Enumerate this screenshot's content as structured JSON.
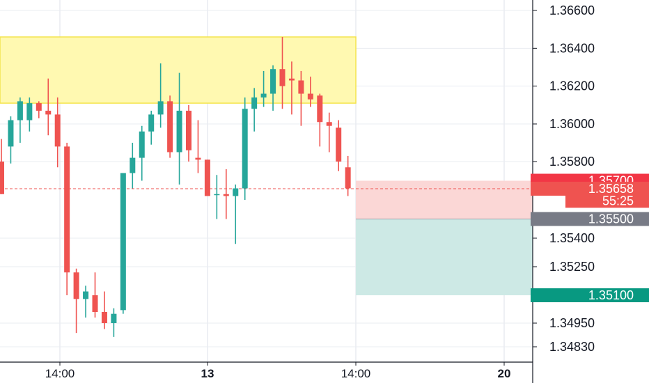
{
  "chart_data": {
    "type": "candlestick",
    "ylim": [
      1.3478,
      1.3668
    ],
    "y_ticks": [
      "1.36600",
      "1.36400",
      "1.36200",
      "1.36000",
      "1.35800",
      "1.35400",
      "1.35250",
      "1.34950",
      "1.34830"
    ],
    "x_ticks": [
      {
        "label": "14:00",
        "bold": false
      },
      {
        "label": "13",
        "bold": true
      },
      {
        "label": "14:00",
        "bold": false
      },
      {
        "label": "20",
        "bold": true
      }
    ],
    "candles": [
      {
        "o": 1.358,
        "h": 1.3592,
        "l": 1.3563,
        "c": 1.3563
      },
      {
        "o": 1.3588,
        "h": 1.3604,
        "l": 1.3579,
        "c": 1.3602
      },
      {
        "o": 1.3602,
        "h": 1.3614,
        "l": 1.359,
        "c": 1.3612
      },
      {
        "o": 1.3602,
        "h": 1.3614,
        "l": 1.3596,
        "c": 1.3611
      },
      {
        "o": 1.3611,
        "h": 1.3612,
        "l": 1.3603,
        "c": 1.3607
      },
      {
        "o": 1.3607,
        "h": 1.3624,
        "l": 1.3594,
        "c": 1.3605
      },
      {
        "o": 1.3605,
        "h": 1.3614,
        "l": 1.3577,
        "c": 1.3588
      },
      {
        "o": 1.3588,
        "h": 1.359,
        "l": 1.351,
        "c": 1.3522
      },
      {
        "o": 1.3522,
        "h": 1.3524,
        "l": 1.349,
        "c": 1.3508
      },
      {
        "o": 1.3508,
        "h": 1.3515,
        "l": 1.3498,
        "c": 1.3512
      },
      {
        "o": 1.351,
        "h": 1.3522,
        "l": 1.3498,
        "c": 1.3501
      },
      {
        "o": 1.3501,
        "h": 1.3512,
        "l": 1.3492,
        "c": 1.3495
      },
      {
        "o": 1.3495,
        "h": 1.3503,
        "l": 1.3488,
        "c": 1.35
      },
      {
        "o": 1.3502,
        "h": 1.3574,
        "l": 1.35,
        "c": 1.3574
      },
      {
        "o": 1.3574,
        "h": 1.359,
        "l": 1.3566,
        "c": 1.3582
      },
      {
        "o": 1.3582,
        "h": 1.3599,
        "l": 1.357,
        "c": 1.3596
      },
      {
        "o": 1.3596,
        "h": 1.3607,
        "l": 1.3589,
        "c": 1.3605
      },
      {
        "o": 1.3605,
        "h": 1.3632,
        "l": 1.3598,
        "c": 1.3612
      },
      {
        "o": 1.3612,
        "h": 1.3615,
        "l": 1.3582,
        "c": 1.3585
      },
      {
        "o": 1.3585,
        "h": 1.3627,
        "l": 1.3568,
        "c": 1.3607
      },
      {
        "o": 1.3607,
        "h": 1.361,
        "l": 1.358,
        "c": 1.3586
      },
      {
        "o": 1.3582,
        "h": 1.3602,
        "l": 1.3574,
        "c": 1.3581
      },
      {
        "o": 1.3581,
        "h": 1.3581,
        "l": 1.3562,
        "c": 1.3562
      },
      {
        "o": 1.3563,
        "h": 1.3573,
        "l": 1.355,
        "c": 1.3563
      },
      {
        "o": 1.3563,
        "h": 1.3576,
        "l": 1.355,
        "c": 1.3562
      },
      {
        "o": 1.3562,
        "h": 1.3568,
        "l": 1.3537,
        "c": 1.3566
      },
      {
        "o": 1.3566,
        "h": 1.3614,
        "l": 1.356,
        "c": 1.3608
      },
      {
        "o": 1.3608,
        "h": 1.3619,
        "l": 1.3596,
        "c": 1.3614
      },
      {
        "o": 1.3614,
        "h": 1.3628,
        "l": 1.3609,
        "c": 1.3616
      },
      {
        "o": 1.3616,
        "h": 1.3631,
        "l": 1.3607,
        "c": 1.3629
      },
      {
        "o": 1.3629,
        "h": 1.3646,
        "l": 1.3608,
        "c": 1.362
      },
      {
        "o": 1.3624,
        "h": 1.3633,
        "l": 1.3605,
        "c": 1.3623
      },
      {
        "o": 1.3623,
        "h": 1.3628,
        "l": 1.3599,
        "c": 1.3616
      },
      {
        "o": 1.3616,
        "h": 1.3625,
        "l": 1.3609,
        "c": 1.3613
      },
      {
        "o": 1.3615,
        "h": 1.3616,
        "l": 1.3588,
        "c": 1.3601
      },
      {
        "o": 1.3601,
        "h": 1.3606,
        "l": 1.3585,
        "c": 1.3599
      },
      {
        "o": 1.3598,
        "h": 1.3602,
        "l": 1.3575,
        "c": 1.358
      },
      {
        "o": 1.3577,
        "h": 1.3583,
        "l": 1.3562,
        "c": 1.3566
      }
    ],
    "supply_zone": {
      "from": 1.3611,
      "to": 1.3646
    },
    "stop_zone": {
      "from": 1.355,
      "to": 1.357
    },
    "target_zone": {
      "from": 1.351,
      "to": 1.355
    },
    "current_price": 1.35658,
    "badges": [
      {
        "text": "1.35700",
        "value": 1.357,
        "color": "#f23645"
      },
      {
        "text": "1.35658",
        "value": 1.35658,
        "color": "#ef5350"
      },
      {
        "text": "55:25",
        "value": 1.35595,
        "color": "#ef5350"
      },
      {
        "text": "1.35500",
        "value": 1.355,
        "color": "#787b86"
      },
      {
        "text": "1.35100",
        "value": 1.351,
        "color": "#089981"
      }
    ],
    "colors": {
      "up": "#26a69a",
      "down": "#ef5350",
      "supply_fill": "#fff9b1",
      "supply_border": "#f4e44d",
      "stop_fill": "#fbd7d6",
      "target_fill": "#cde9e5",
      "grid": "#e9ecf1",
      "axis": "#131722"
    }
  }
}
